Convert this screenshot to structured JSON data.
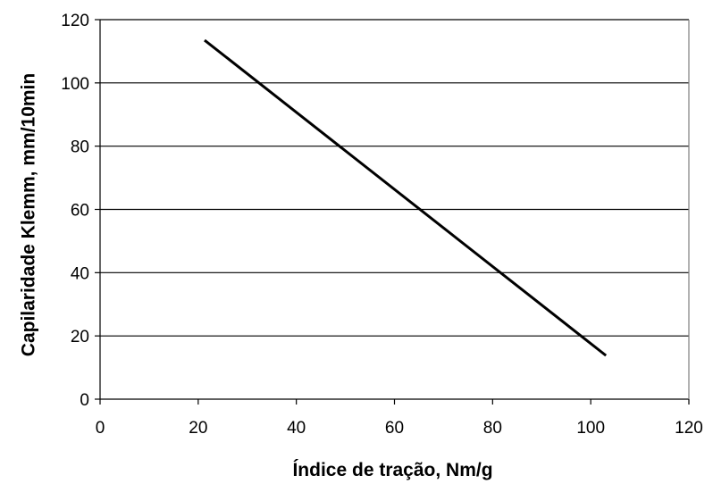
{
  "chart_data": {
    "type": "line",
    "xlabel": "Índice de tração, Nm/g",
    "ylabel": "Capilaridade Klemm, mm/10min",
    "xlim": [
      0,
      120
    ],
    "ylim": [
      0,
      120
    ],
    "x_ticks": [
      0,
      20,
      40,
      60,
      80,
      100,
      120
    ],
    "y_ticks": [
      0,
      20,
      40,
      60,
      80,
      100,
      120
    ],
    "grid": "horizontal",
    "legend": "none",
    "series": [
      {
        "x": [
          21.3,
          103.1
        ],
        "y": [
          113.5,
          13.8
        ],
        "color": "#000000"
      }
    ]
  }
}
